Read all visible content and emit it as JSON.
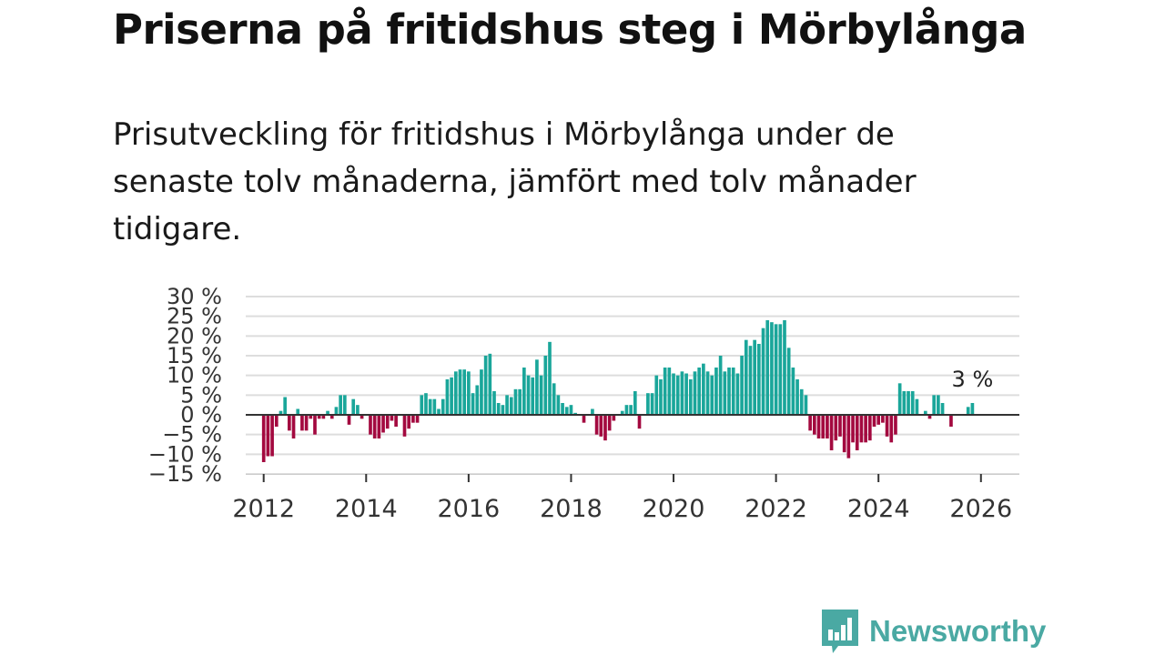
{
  "title": "Priserna på fritidshus steg i Mörbylånga",
  "subtitle": "Prisutveckling för fritidshus i Mörbylånga under de senaste tolv månaderna, jämfört med tolv månader tidigare.",
  "brand": {
    "name": "Newsworthy",
    "icon": "newsworthy-logo-icon",
    "color": "#4aa9a3"
  },
  "chart_data": {
    "type": "bar",
    "title": "Priserna på fritidshus steg i Mörbylånga",
    "xlabel": "",
    "ylabel": "",
    "ylim": [
      -15,
      30
    ],
    "xlim": [
      2011.65,
      2026.75
    ],
    "grid": true,
    "y_ticks": [
      30,
      25,
      20,
      15,
      10,
      5,
      0,
      -5,
      -10,
      -15
    ],
    "y_tick_labels": [
      "30 %",
      "25 %",
      "20 %",
      "15 %",
      "10 %",
      "5 %",
      "0 %",
      "−5 %",
      "−10 %",
      "−15 %"
    ],
    "x_ticks": [
      2012,
      2014,
      2016,
      2018,
      2020,
      2022,
      2024,
      2026
    ],
    "x_tick_labels": [
      "2012",
      "2014",
      "2016",
      "2018",
      "2020",
      "2022",
      "2024",
      "2026"
    ],
    "positive_color": "#1aa69a",
    "negative_color": "#a3093f",
    "annotation": {
      "text": "3 %",
      "value": 3
    },
    "series": [
      {
        "name": "Prisutveckling",
        "start": "2012-01",
        "frequency": "monthly",
        "values": [
          -12,
          -10.5,
          -10.5,
          -3,
          1,
          4.5,
          -4,
          -6,
          1.5,
          -4,
          -4,
          -1,
          -5,
          -1,
          -1,
          1,
          -1,
          2,
          5,
          5,
          -2.5,
          4,
          2.5,
          -1,
          0,
          -5,
          -6,
          -6,
          -4.5,
          -3.5,
          -1.5,
          -3,
          0,
          -5.5,
          -3.5,
          -2,
          -2,
          5,
          5.5,
          4,
          4,
          1.5,
          4,
          9,
          9.5,
          11,
          11.5,
          11.5,
          11,
          5.5,
          7.5,
          11.5,
          15,
          15.5,
          6,
          3,
          2.5,
          5,
          4.5,
          6.5,
          6.5,
          12,
          10,
          9.5,
          14,
          10,
          15,
          18.5,
          8,
          5,
          3,
          2,
          2.5,
          0.5,
          0,
          -2,
          0,
          1.5,
          -5,
          -5.5,
          -6.5,
          -4,
          -1.5,
          0,
          1,
          2.5,
          2.5,
          6,
          -3.5,
          0,
          5.5,
          5.5,
          10,
          9,
          12,
          12,
          10.5,
          10,
          11,
          10.5,
          9,
          11,
          12,
          13,
          11,
          10,
          12,
          15,
          11,
          12,
          12,
          10.5,
          15,
          19,
          17.5,
          19,
          18,
          22,
          24,
          23.5,
          23,
          23,
          24,
          17,
          12,
          9,
          6.5,
          5,
          -4,
          -5,
          -6,
          -6,
          -6,
          -9,
          -6.5,
          -5.5,
          -9.5,
          -11,
          -7,
          -9,
          -7,
          -7,
          -6.5,
          -3,
          -2.5,
          -2,
          -5.5,
          -7,
          -5,
          8,
          6,
          6,
          6,
          4,
          0,
          1,
          -1,
          5,
          5,
          3,
          0,
          -3,
          0,
          0,
          0,
          2,
          3
        ]
      }
    ]
  }
}
